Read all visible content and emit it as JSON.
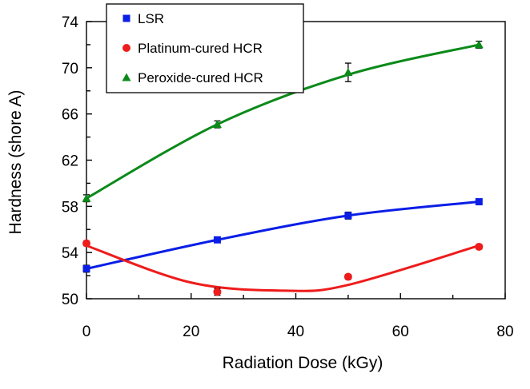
{
  "chart_data": {
    "type": "scatter",
    "xlabel": "Radiation Dose (kGy)",
    "ylabel": "Hardness (shore A)",
    "xlim": [
      0,
      80
    ],
    "ylim": [
      50,
      74
    ],
    "xticks": [
      0,
      20,
      40,
      60,
      80
    ],
    "yticks": [
      50,
      54,
      58,
      62,
      66,
      70,
      74
    ],
    "grid": false,
    "legend_position": "top-left",
    "series": [
      {
        "name": "LSR",
        "marker": "square",
        "color": "#0a1ee6",
        "x": [
          0,
          25,
          50,
          75
        ],
        "y": [
          52.6,
          55.1,
          57.2,
          58.4
        ],
        "error": [
          0.3,
          0.2,
          0.3,
          0.2
        ],
        "trend": [
          [
            0,
            52.6
          ],
          [
            25,
            55.1
          ],
          [
            50,
            57.2
          ],
          [
            75,
            58.4
          ]
        ]
      },
      {
        "name": "Platinum-cured HCR",
        "marker": "circle",
        "color": "#ee1c1c",
        "x": [
          0,
          25,
          50,
          75
        ],
        "y": [
          54.8,
          50.6,
          51.9,
          54.5
        ],
        "error": [
          0.2,
          0.3,
          0.2,
          0.2
        ],
        "trend": [
          [
            0,
            54.6
          ],
          [
            20,
            51.4
          ],
          [
            38,
            50.7
          ],
          [
            50,
            51.2
          ],
          [
            75,
            54.6
          ]
        ]
      },
      {
        "name": "Peroxide-cured HCR",
        "marker": "triangle",
        "color": "#0b8a1a",
        "x": [
          0,
          25,
          50,
          75
        ],
        "y": [
          58.7,
          65.1,
          69.6,
          72.0
        ],
        "error": [
          0.3,
          0.3,
          0.8,
          0.3
        ],
        "trend": [
          [
            0,
            58.7
          ],
          [
            25,
            65.1
          ],
          [
            50,
            69.4
          ],
          [
            75,
            72.0
          ]
        ]
      }
    ]
  }
}
